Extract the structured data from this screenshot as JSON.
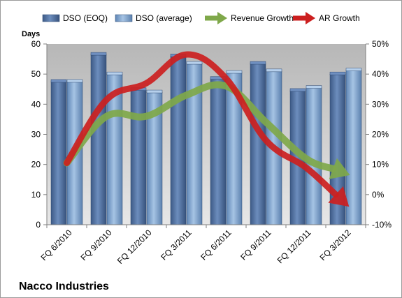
{
  "chart_data": {
    "type": "bar",
    "title": "Nacco Industries",
    "ylabel": "Days",
    "ylim": [
      0,
      60
    ],
    "y_ticks": [
      0,
      10,
      20,
      30,
      40,
      50,
      60
    ],
    "y2lim": [
      -10,
      50
    ],
    "y2_ticks": [
      "-10%",
      "0%",
      "10%",
      "20%",
      "30%",
      "40%",
      "50%"
    ],
    "categories": [
      "FQ 6/2010",
      "FQ 9/2010",
      "FQ 12/2010",
      "FQ 3/2011",
      "FQ 6/2011",
      "FQ 9/2011",
      "FQ 12/2011",
      "FQ 3/2012"
    ],
    "series": [
      {
        "name": "DSO (EOQ)",
        "type": "bar",
        "axis": "left",
        "color": "#4f6f9f",
        "values": [
          47.5,
          56.5,
          44.8,
          56.0,
          48.5,
          53.5,
          44.5,
          50.0
        ]
      },
      {
        "name": "DSO (average)",
        "type": "bar",
        "axis": "left",
        "color": "#7ea4cf",
        "values": [
          47.5,
          50.0,
          44.0,
          53.5,
          50.5,
          51.0,
          45.5,
          51.3
        ]
      },
      {
        "name": "Revenue Growth",
        "type": "line",
        "axis": "right",
        "unit": "%",
        "color": "#7fa84a",
        "values": [
          10.5,
          26.0,
          26.0,
          33.0,
          36.0,
          24.0,
          12.0,
          7.0
        ]
      },
      {
        "name": "AR Growth",
        "type": "line",
        "axis": "right",
        "unit": "%",
        "color": "#cc1f1f",
        "values": [
          10.5,
          31.5,
          37.0,
          46.5,
          38.5,
          18.0,
          9.0,
          -3.0
        ]
      }
    ],
    "grid": false,
    "legend_position": "top"
  }
}
